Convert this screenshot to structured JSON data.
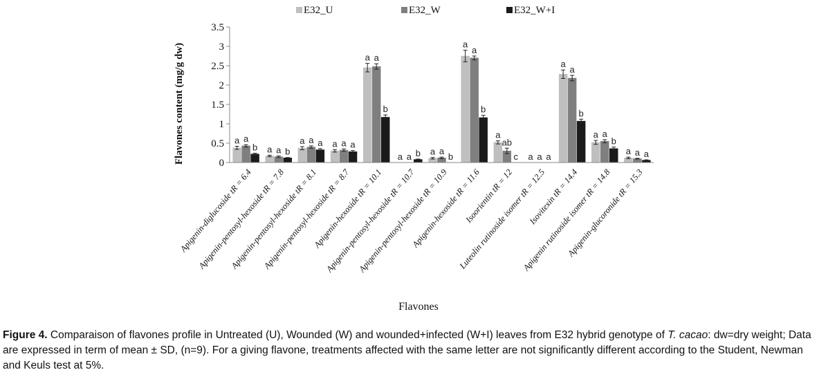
{
  "chart_data": {
    "type": "bar",
    "ylabel": "Flavones content (mg/g dw)",
    "xlabel": "Flavones",
    "ylim": [
      0,
      3.5
    ],
    "yticks": [
      "0",
      "0.5",
      "1",
      "1.5",
      "2",
      "2.5",
      "3",
      "3.5"
    ],
    "ytick_values": [
      0,
      0.5,
      1,
      1.5,
      2,
      2.5,
      3,
      3.5
    ],
    "legend_position": "top",
    "categories": [
      "Apigenin-diglucoside tR = 6.4",
      "Apigenin-pentosyl-hexoside tR = 7.8",
      "Apigenin-pentosyl-hexoside tR = 8.1",
      "Apigenin-pentosyl-hexoside tR = 8.7",
      "Apigenin-hexoside tR = 10.1",
      "Apigenin-pentosyl-hexoside tR = 10.7",
      "Apigenin-pentosyl-hexoside tR = 10.9",
      "Apigenin-hexoside tR = 11.6",
      "Isoorientin tR = 12",
      "Luteolin rutinoside isomer tR = 12.5",
      "Isovitexin tR = 14.4",
      "Apigenin rutinoside isomer tR = 14.8",
      "Apigenin-glucoronide tR = 15.3"
    ],
    "series": [
      {
        "name": "E32_U",
        "color": "#bfbfbf",
        "values": [
          0.38,
          0.17,
          0.37,
          0.3,
          2.45,
          0.0,
          0.11,
          2.75,
          0.52,
          0.0,
          2.28,
          0.52,
          0.12
        ],
        "errors": [
          0.04,
          0.02,
          0.04,
          0.03,
          0.11,
          0.0,
          0.02,
          0.15,
          0.04,
          0.0,
          0.11,
          0.05,
          0.02
        ],
        "letters": [
          "a",
          "a",
          "a",
          "a",
          "a",
          "a",
          "a",
          "a",
          "a",
          "a",
          "a",
          "a",
          "a"
        ]
      },
      {
        "name": "E32_W",
        "color": "#7f7f7f",
        "values": [
          0.43,
          0.15,
          0.4,
          0.32,
          2.48,
          0.0,
          0.12,
          2.7,
          0.3,
          0.0,
          2.18,
          0.55,
          0.1
        ],
        "errors": [
          0.03,
          0.02,
          0.03,
          0.03,
          0.07,
          0.0,
          0.02,
          0.05,
          0.07,
          0.0,
          0.07,
          0.04,
          0.01
        ],
        "letters": [
          "a",
          "a",
          "a",
          "a",
          "a",
          "a",
          "a",
          "a",
          "ab",
          "a",
          "a",
          "a",
          "a"
        ]
      },
      {
        "name": "E32_W+I",
        "color": "#1a1a1a",
        "values": [
          0.22,
          0.12,
          0.33,
          0.28,
          1.17,
          0.08,
          0.0,
          1.16,
          0.0,
          0.0,
          1.07,
          0.36,
          0.06
        ],
        "errors": [
          0.02,
          0.01,
          0.03,
          0.03,
          0.06,
          0.01,
          0.0,
          0.06,
          0.0,
          0.0,
          0.05,
          0.04,
          0.01
        ],
        "letters": [
          "b",
          "b",
          "a",
          "a",
          "b",
          "b",
          "b",
          "b",
          "c",
          "a",
          "b",
          "b",
          "a"
        ]
      }
    ]
  },
  "caption": {
    "label": "Figure 4.",
    "text": " Comparaison of flavones profile in Untreated (U), Wounded (W) and wounded+infected (W+I) leaves from E32 hybrid genotype of ",
    "species_italic_1": "T. cacao",
    "text2": ": dw=dry weight; Data are expressed in term of mean ± SD, (n=9). For a giving flavone, treatments affected with the same letter are not significantly different according to the Student, Newman and Keuls test at 5%."
  }
}
